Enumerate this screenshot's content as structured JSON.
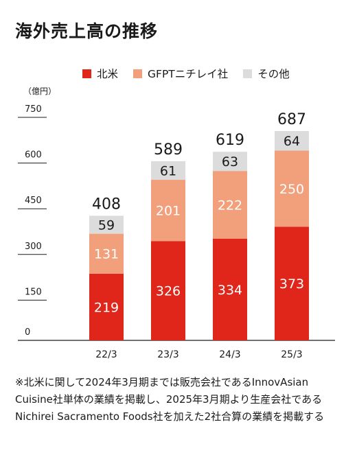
{
  "title": "海外売上高の推移",
  "unit": "（億円）",
  "note": "※北米に関して2024年3月期までは販売会社であるInnovAsian Cuisine社単体の業績を掲載し、2025年3月期より生産会社であるNichirei Sacramento Foods社を加えた2社合算の業績を掲載する",
  "chart_data": {
    "type": "bar",
    "stacked": true,
    "categories": [
      "22/3",
      "23/3",
      "24/3",
      "25/3"
    ],
    "series": [
      {
        "name": "北米",
        "color": "#e0251b",
        "values": [
          219,
          326,
          334,
          373
        ]
      },
      {
        "name": "GFPTニチレイ社",
        "color": "#f2a07c",
        "values": [
          131,
          201,
          222,
          250
        ]
      },
      {
        "name": "その他",
        "color": "#dcdcdc",
        "values": [
          59,
          61,
          63,
          64
        ]
      }
    ],
    "totals": [
      408,
      589,
      619,
      687
    ],
    "yticks": [
      0,
      150,
      300,
      450,
      600,
      750
    ],
    "ylim": [
      0,
      750
    ],
    "legend": "top"
  }
}
